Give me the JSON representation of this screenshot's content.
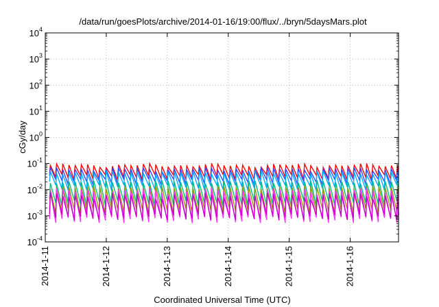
{
  "chart_data": {
    "type": "line",
    "title": "/data/run/goesPlots/archive/2014-01-16/19:00/flux/../bryn/5daysMars.plot",
    "xlabel": "Coordinated Universal Time (UTC)",
    "ylabel": "cGy/day",
    "y_scale": "log",
    "ylim": [
      0.0001,
      10000
    ],
    "xlim": [
      "2014-01-11",
      "2014-01-16 19:00"
    ],
    "x_ticks": [
      "2014-1-11",
      "2014-1-12",
      "2014-1-13",
      "2014-1-14",
      "2014-1-15",
      "2014-1-16"
    ],
    "y_ticks": [
      {
        "value": 0.0001,
        "base": "10",
        "exp": "-4"
      },
      {
        "value": 0.001,
        "base": "10",
        "exp": "-3"
      },
      {
        "value": 0.01,
        "base": "10",
        "exp": "-2"
      },
      {
        "value": 0.1,
        "base": "10",
        "exp": "-1"
      },
      {
        "value": 1,
        "base": "10",
        "exp": "0"
      },
      {
        "value": 10,
        "base": "10",
        "exp": "1"
      },
      {
        "value": 100,
        "base": "10",
        "exp": "2"
      },
      {
        "value": 1000,
        "base": "10",
        "exp": "3"
      },
      {
        "value": 10000,
        "base": "10",
        "exp": "4"
      }
    ],
    "grid": true,
    "pattern": {
      "period_hours": 2.44,
      "first_peak": "2014-01-11 02:00"
    },
    "series": [
      {
        "color": "#ff0000",
        "peak_base": 0.085,
        "trough": 0.03,
        "amp_variation": 0.2
      },
      {
        "color": "#3344ff",
        "peak_base": 0.06,
        "trough": 0.02,
        "amp_variation": 0.2
      },
      {
        "color": "#00aaff",
        "peak_base": 0.045,
        "trough": 0.012,
        "amp_variation": 0.2
      },
      {
        "color": "#00bb88",
        "peak_base": 0.02,
        "trough": 0.003,
        "amp_variation": 0.15
      },
      {
        "color": "#999900",
        "peak_base": 0.012,
        "trough": 0.0015,
        "amp_variation": 0.15
      },
      {
        "color": "#ff33ff",
        "peak_base": 0.009,
        "trough": 0.0007,
        "amp_variation": 0.3
      },
      {
        "color": "#cc00cc",
        "peak_base": 0.006,
        "trough": 0.0009,
        "amp_variation": 0.3
      }
    ]
  }
}
